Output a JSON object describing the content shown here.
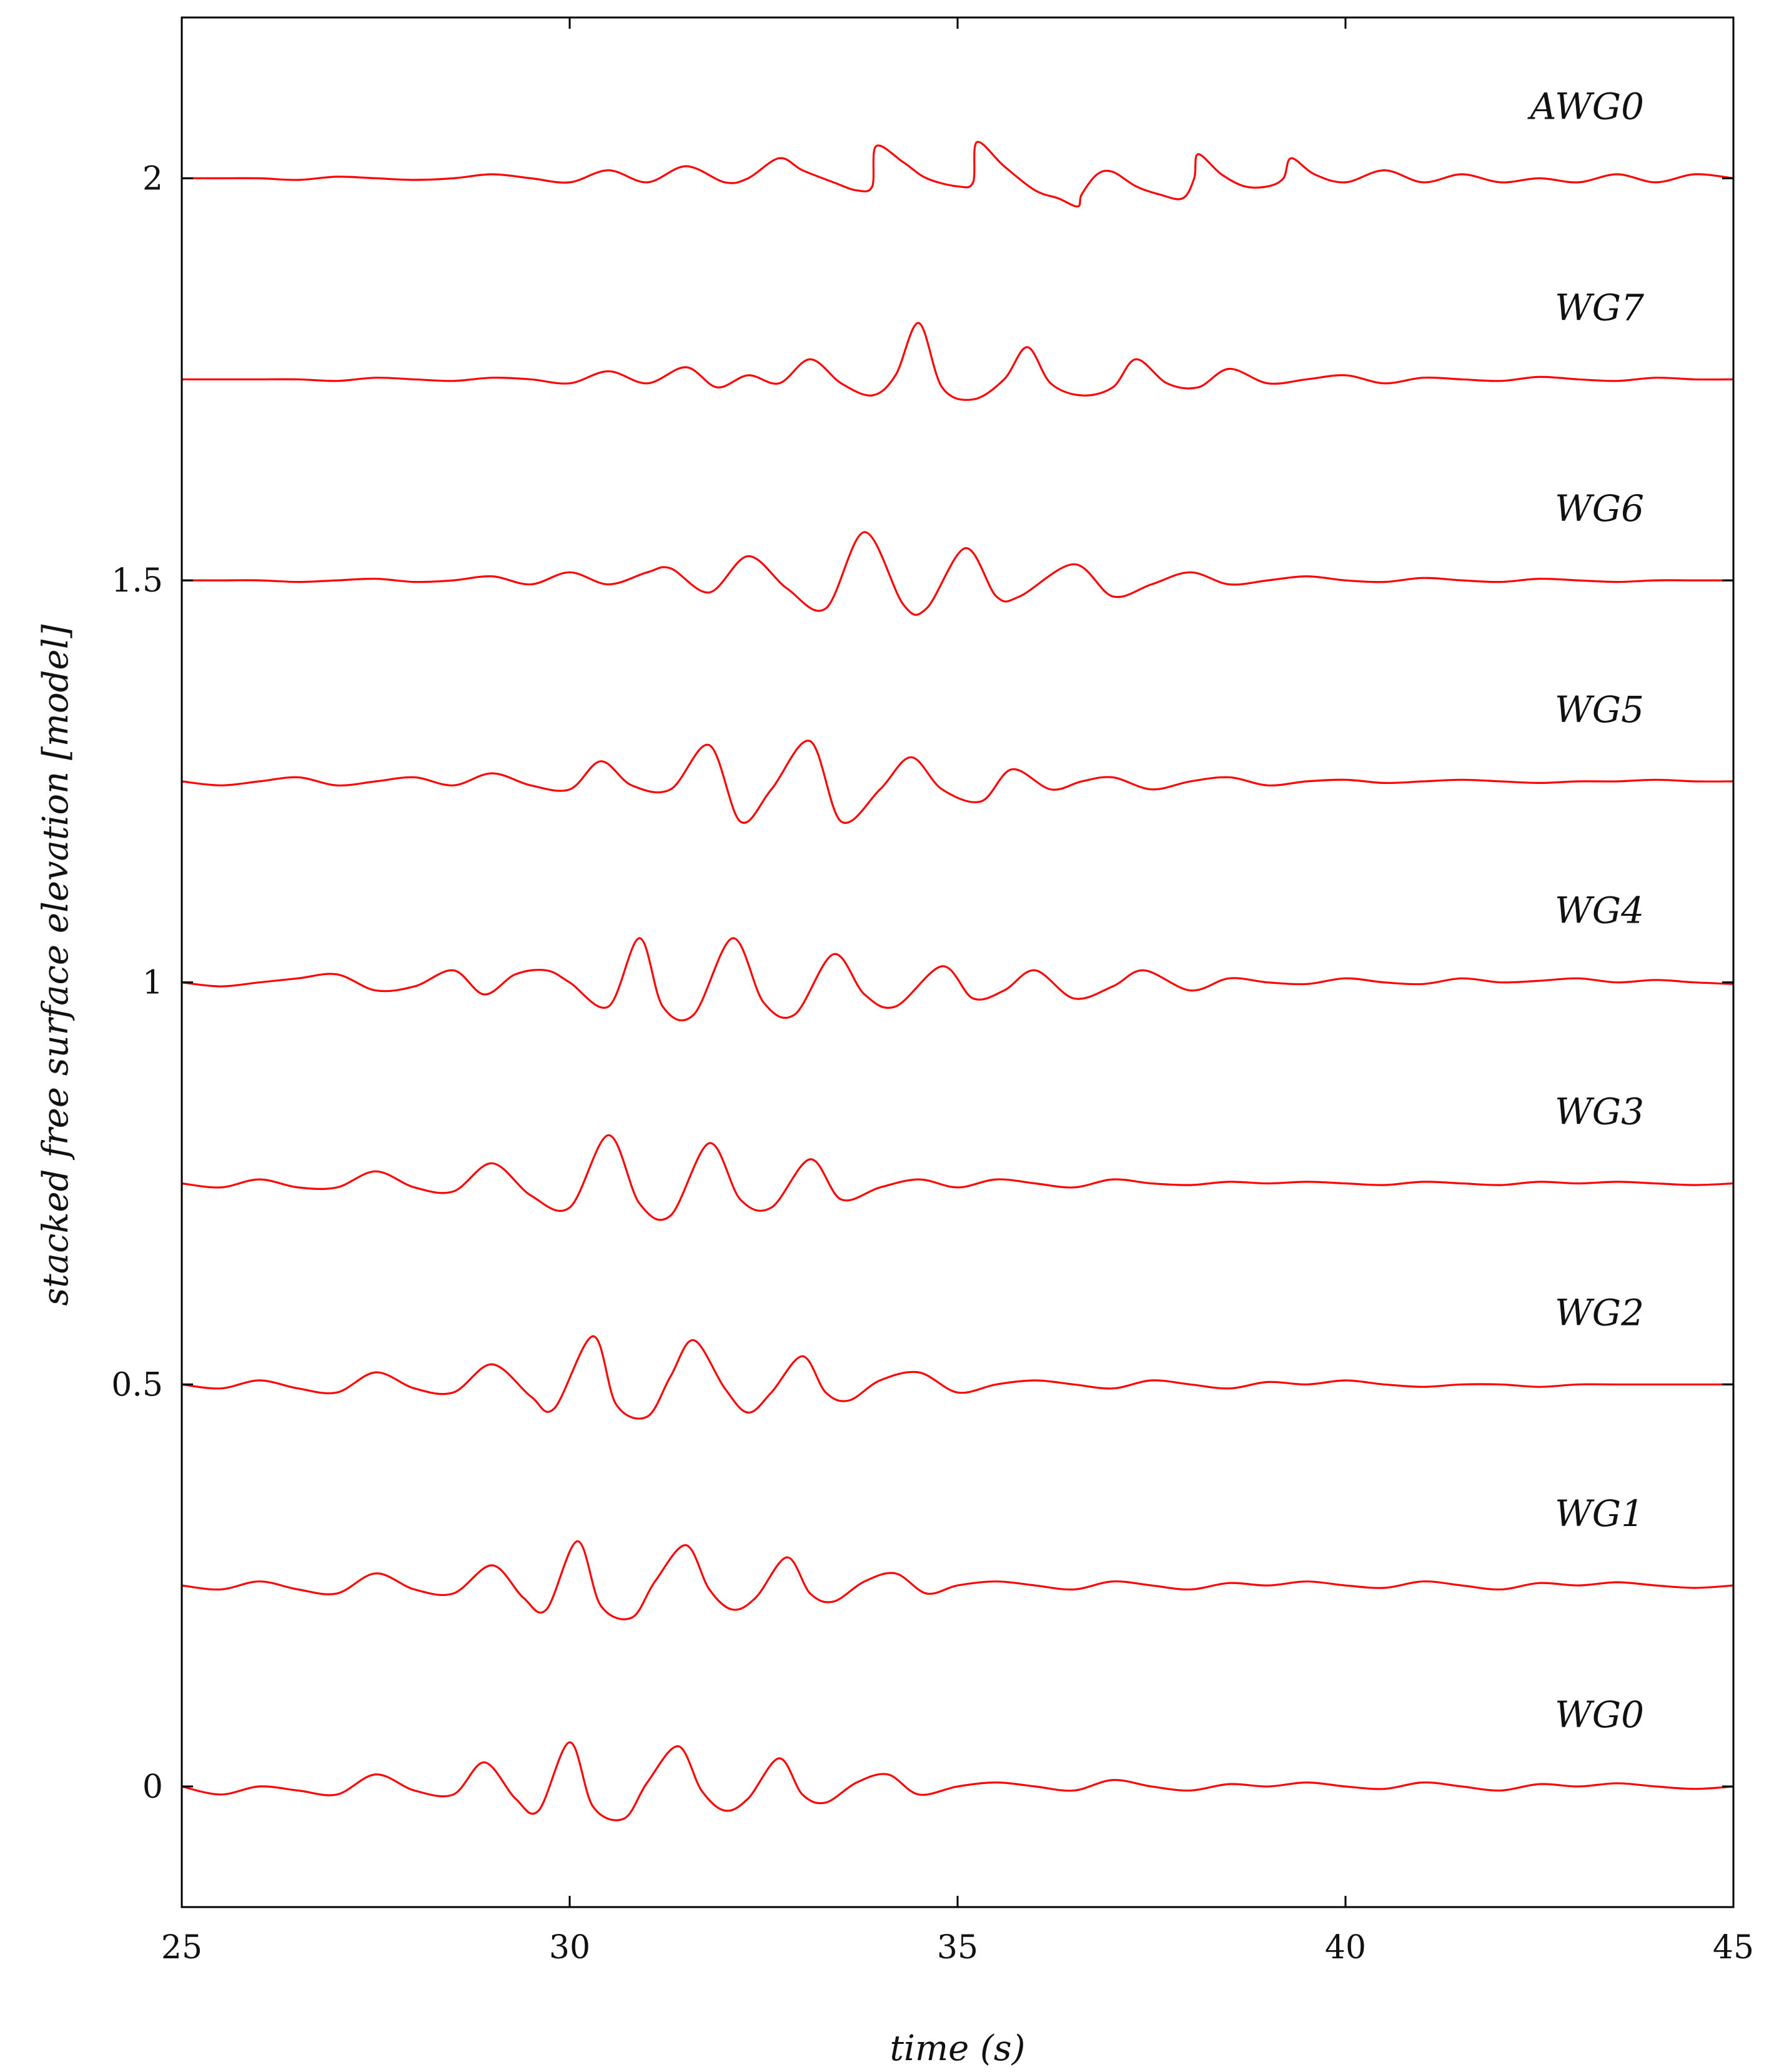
{
  "chart_data": {
    "type": "line",
    "title": "",
    "xlabel": "time (s)",
    "ylabel": "stacked free surface elevation [model]",
    "xlim": [
      25,
      45
    ],
    "ylim": [
      -0.15,
      2.2
    ],
    "xticks": [
      25,
      30,
      35,
      40,
      45
    ],
    "xtick_labels": [
      "25",
      "30",
      "35",
      "40",
      "45"
    ],
    "yticks": [
      0,
      0.5,
      1,
      1.5,
      2
    ],
    "ytick_labels": [
      "0",
      "0.5",
      "1",
      "1.5",
      "2"
    ],
    "grid": false,
    "legend": "none",
    "line_color": "#ff0000",
    "series": [
      {
        "name": "WG0",
        "offset": 0.0,
        "x": [
          25.0,
          25.5,
          26.0,
          26.5,
          27.0,
          27.5,
          28.0,
          28.5,
          28.9,
          29.3,
          29.6,
          30.0,
          30.3,
          30.7,
          31.0,
          31.4,
          31.7,
          32.0,
          32.3,
          32.7,
          33.0,
          33.3,
          33.7,
          34.1,
          34.5,
          35.0,
          35.5,
          36.0,
          36.5,
          37.0,
          37.5,
          38.0,
          38.5,
          39.0,
          39.5,
          40.0,
          40.5,
          41.0,
          41.5,
          42.0,
          42.5,
          43.0,
          43.5,
          44.0,
          44.5,
          45.0
        ],
        "y": [
          0.0,
          -0.01,
          0.0,
          -0.005,
          -0.01,
          0.015,
          -0.005,
          -0.01,
          0.03,
          -0.015,
          -0.03,
          0.055,
          -0.025,
          -0.04,
          0.005,
          0.05,
          -0.005,
          -0.03,
          -0.015,
          0.035,
          -0.01,
          -0.02,
          0.005,
          0.015,
          -0.01,
          0.0,
          0.005,
          0.0,
          -0.005,
          0.008,
          0.0,
          -0.005,
          0.003,
          0.0,
          0.005,
          0.0,
          -0.003,
          0.005,
          0.0,
          -0.005,
          0.003,
          0.0,
          0.004,
          0.0,
          -0.003,
          0.0
        ]
      },
      {
        "name": "WG1",
        "offset": 0.25,
        "x": [
          25.0,
          25.5,
          26.0,
          26.5,
          27.0,
          27.5,
          28.0,
          28.5,
          29.0,
          29.4,
          29.7,
          30.1,
          30.4,
          30.8,
          31.1,
          31.5,
          31.8,
          32.1,
          32.4,
          32.8,
          33.1,
          33.4,
          33.8,
          34.2,
          34.6,
          35.0,
          35.5,
          36.0,
          36.5,
          37.0,
          37.5,
          38.0,
          38.5,
          39.0,
          39.5,
          40.0,
          40.5,
          41.0,
          41.5,
          42.0,
          42.5,
          43.0,
          43.5,
          44.0,
          44.5,
          45.0
        ],
        "y": [
          0.25,
          0.245,
          0.255,
          0.245,
          0.24,
          0.265,
          0.245,
          0.24,
          0.275,
          0.235,
          0.22,
          0.305,
          0.225,
          0.21,
          0.255,
          0.3,
          0.245,
          0.22,
          0.235,
          0.285,
          0.24,
          0.23,
          0.255,
          0.265,
          0.24,
          0.25,
          0.255,
          0.25,
          0.245,
          0.255,
          0.25,
          0.245,
          0.253,
          0.25,
          0.255,
          0.25,
          0.247,
          0.255,
          0.25,
          0.245,
          0.253,
          0.25,
          0.254,
          0.25,
          0.247,
          0.25
        ]
      },
      {
        "name": "WG2",
        "offset": 0.5,
        "x": [
          25.0,
          25.5,
          26.0,
          26.5,
          27.0,
          27.5,
          28.0,
          28.5,
          29.0,
          29.5,
          29.8,
          30.3,
          30.6,
          31.0,
          31.3,
          31.6,
          32.0,
          32.3,
          32.6,
          33.0,
          33.3,
          33.6,
          34.0,
          34.5,
          35.0,
          35.5,
          36.0,
          36.5,
          37.0,
          37.5,
          38.0,
          38.5,
          39.0,
          39.5,
          40.0,
          40.5,
          41.0,
          41.5,
          42.0,
          42.5,
          43.0,
          43.5,
          44.0,
          44.5,
          45.0
        ],
        "y": [
          0.5,
          0.495,
          0.505,
          0.495,
          0.49,
          0.515,
          0.495,
          0.49,
          0.525,
          0.485,
          0.47,
          0.56,
          0.475,
          0.46,
          0.51,
          0.555,
          0.495,
          0.465,
          0.49,
          0.535,
          0.49,
          0.48,
          0.505,
          0.515,
          0.49,
          0.5,
          0.505,
          0.5,
          0.495,
          0.505,
          0.5,
          0.495,
          0.503,
          0.5,
          0.505,
          0.5,
          0.497,
          0.5,
          0.5,
          0.497,
          0.5,
          0.5,
          0.5,
          0.5,
          0.5
        ]
      },
      {
        "name": "WG3",
        "offset": 0.75,
        "x": [
          25.0,
          25.5,
          26.0,
          26.5,
          27.0,
          27.5,
          28.0,
          28.5,
          29.0,
          29.5,
          30.0,
          30.5,
          30.9,
          31.3,
          31.8,
          32.2,
          32.6,
          33.1,
          33.5,
          34.0,
          34.5,
          35.0,
          35.5,
          36.0,
          36.5,
          37.0,
          37.5,
          38.0,
          38.5,
          39.0,
          39.5,
          40.0,
          40.5,
          41.0,
          41.5,
          42.0,
          42.5,
          43.0,
          43.5,
          44.0,
          44.5,
          45.0
        ],
        "y": [
          0.75,
          0.745,
          0.755,
          0.745,
          0.745,
          0.765,
          0.745,
          0.74,
          0.775,
          0.735,
          0.72,
          0.81,
          0.725,
          0.71,
          0.8,
          0.73,
          0.72,
          0.78,
          0.73,
          0.745,
          0.755,
          0.745,
          0.755,
          0.75,
          0.745,
          0.755,
          0.75,
          0.748,
          0.752,
          0.75,
          0.752,
          0.75,
          0.748,
          0.752,
          0.75,
          0.748,
          0.752,
          0.75,
          0.752,
          0.75,
          0.748,
          0.75
        ]
      },
      {
        "name": "WG4",
        "offset": 1.0,
        "x": [
          25.0,
          25.5,
          26.0,
          26.5,
          27.0,
          27.5,
          28.0,
          28.5,
          28.9,
          29.3,
          29.7,
          30.0,
          30.5,
          30.9,
          31.2,
          31.6,
          32.1,
          32.5,
          32.9,
          33.4,
          33.8,
          34.2,
          34.8,
          35.2,
          35.6,
          36.0,
          36.5,
          37.0,
          37.4,
          38.0,
          38.5,
          39.0,
          39.5,
          40.0,
          40.5,
          41.0,
          41.5,
          42.0,
          42.5,
          43.0,
          43.5,
          44.0,
          44.5,
          45.0
        ],
        "y": [
          1.0,
          0.995,
          1.0,
          1.005,
          1.01,
          0.99,
          0.995,
          1.015,
          0.985,
          1.01,
          1.015,
          1.0,
          0.97,
          1.055,
          0.97,
          0.96,
          1.055,
          0.975,
          0.96,
          1.035,
          0.985,
          0.97,
          1.02,
          0.98,
          0.99,
          1.015,
          0.98,
          0.995,
          1.015,
          0.99,
          1.005,
          1.0,
          0.998,
          1.005,
          1.0,
          0.998,
          1.005,
          1.0,
          1.002,
          1.005,
          1.0,
          1.003,
          1.0,
          0.998
        ]
      },
      {
        "name": "WG5",
        "offset": 1.25,
        "x": [
          25.0,
          25.5,
          26.0,
          26.5,
          27.0,
          27.5,
          28.0,
          28.5,
          29.0,
          29.5,
          30.0,
          30.4,
          30.8,
          31.3,
          31.8,
          32.2,
          32.6,
          33.1,
          33.5,
          34.0,
          34.4,
          34.8,
          35.3,
          35.7,
          36.2,
          36.6,
          37.0,
          37.5,
          38.0,
          38.5,
          39.0,
          39.5,
          40.0,
          40.5,
          41.0,
          41.5,
          42.0,
          42.5,
          43.0,
          43.5,
          44.0,
          44.5,
          45.0
        ],
        "y": [
          1.25,
          1.245,
          1.25,
          1.255,
          1.245,
          1.25,
          1.255,
          1.245,
          1.26,
          1.245,
          1.24,
          1.275,
          1.245,
          1.24,
          1.295,
          1.2,
          1.24,
          1.3,
          1.2,
          1.24,
          1.28,
          1.24,
          1.225,
          1.265,
          1.24,
          1.25,
          1.255,
          1.24,
          1.25,
          1.255,
          1.245,
          1.25,
          1.252,
          1.248,
          1.25,
          1.252,
          1.25,
          1.248,
          1.25,
          1.25,
          1.252,
          1.25,
          1.25
        ]
      },
      {
        "name": "WG6",
        "offset": 1.5,
        "x": [
          25.0,
          25.5,
          26.0,
          26.5,
          27.0,
          27.5,
          28.0,
          28.5,
          29.0,
          29.5,
          30.0,
          30.5,
          31.0,
          31.3,
          31.8,
          32.3,
          32.8,
          33.3,
          33.8,
          34.3,
          34.6,
          35.1,
          35.5,
          35.8,
          36.5,
          37.0,
          37.5,
          38.0,
          38.5,
          39.0,
          39.5,
          40.0,
          40.5,
          41.0,
          41.5,
          42.0,
          42.5,
          43.0,
          43.5,
          44.0,
          44.5,
          45.0
        ],
        "y": [
          1.5,
          1.5,
          1.5,
          1.498,
          1.5,
          1.502,
          1.498,
          1.5,
          1.505,
          1.495,
          1.51,
          1.495,
          1.51,
          1.515,
          1.485,
          1.53,
          1.49,
          1.465,
          1.56,
          1.47,
          1.465,
          1.54,
          1.48,
          1.48,
          1.52,
          1.48,
          1.495,
          1.51,
          1.495,
          1.5,
          1.505,
          1.5,
          1.498,
          1.503,
          1.5,
          1.498,
          1.502,
          1.5,
          1.498,
          1.5,
          1.5,
          1.5
        ]
      },
      {
        "name": "WG7",
        "offset": 1.75,
        "x": [
          25.0,
          25.5,
          26.0,
          26.5,
          27.0,
          27.5,
          28.0,
          28.5,
          29.0,
          29.5,
          30.0,
          30.5,
          31.0,
          31.5,
          31.9,
          32.3,
          32.7,
          33.1,
          33.5,
          33.9,
          34.2,
          34.5,
          34.8,
          35.2,
          35.6,
          35.9,
          36.2,
          36.6,
          37.0,
          37.3,
          37.7,
          38.1,
          38.5,
          39.0,
          39.5,
          40.0,
          40.5,
          41.0,
          41.5,
          42.0,
          42.5,
          43.0,
          43.5,
          44.0,
          44.5,
          45.0
        ],
        "y": [
          1.75,
          1.75,
          1.75,
          1.75,
          1.748,
          1.752,
          1.75,
          1.748,
          1.752,
          1.75,
          1.745,
          1.76,
          1.745,
          1.765,
          1.74,
          1.755,
          1.745,
          1.775,
          1.745,
          1.73,
          1.755,
          1.82,
          1.74,
          1.725,
          1.75,
          1.79,
          1.745,
          1.73,
          1.74,
          1.775,
          1.745,
          1.74,
          1.763,
          1.745,
          1.75,
          1.755,
          1.745,
          1.752,
          1.75,
          1.748,
          1.753,
          1.75,
          1.748,
          1.752,
          1.75,
          1.75
        ]
      },
      {
        "name": "AWG0",
        "offset": 2.0,
        "x": [
          25.0,
          25.5,
          26.0,
          26.5,
          27.0,
          27.5,
          28.0,
          28.5,
          29.0,
          29.5,
          30.0,
          30.5,
          31.0,
          31.5,
          32.0,
          32.3,
          32.7,
          33.0,
          33.4,
          33.7,
          33.9,
          33.95,
          34.3,
          34.6,
          35.0,
          35.2,
          35.25,
          35.6,
          36.0,
          36.3,
          36.55,
          36.6,
          36.8,
          37.0,
          37.3,
          37.6,
          37.9,
          38.05,
          38.1,
          38.4,
          38.7,
          39.0,
          39.2,
          39.3,
          39.6,
          40.0,
          40.5,
          41.0,
          41.5,
          42.0,
          42.5,
          43.0,
          43.5,
          44.0,
          44.5,
          45.0
        ],
        "y": [
          2.0,
          2.0,
          2.0,
          1.998,
          2.002,
          2.0,
          1.998,
          2.0,
          2.005,
          2.0,
          1.995,
          2.01,
          1.995,
          2.015,
          1.995,
          2.0,
          2.025,
          2.01,
          1.995,
          1.985,
          1.99,
          2.04,
          2.02,
          2.0,
          1.99,
          1.995,
          2.045,
          2.015,
          1.985,
          1.975,
          1.965,
          1.98,
          2.005,
          2.008,
          1.99,
          1.98,
          1.975,
          2.0,
          2.03,
          2.005,
          1.99,
          1.99,
          2.0,
          2.025,
          2.005,
          1.995,
          2.01,
          1.995,
          2.005,
          1.995,
          2.0,
          1.995,
          2.005,
          1.995,
          2.005,
          2.0
        ]
      }
    ]
  }
}
